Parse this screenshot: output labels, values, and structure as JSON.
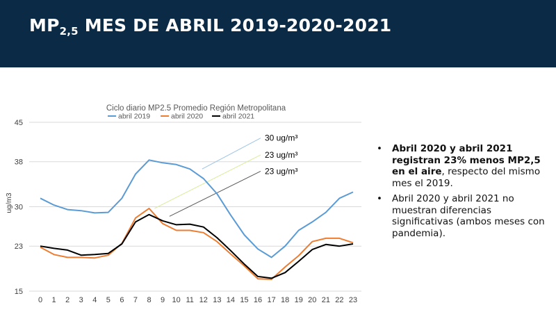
{
  "header": {
    "title_prefix": "MP",
    "title_sub": "2,5",
    "title_rest": " MES DE ABRIL 2019-2020-2021",
    "bg_color": "#0b2a45"
  },
  "chart_data": {
    "type": "line",
    "title": "Ciclo diario MP2.5 Promedio Región Metropolitana",
    "xlabel": "",
    "ylabel": "ug/m3",
    "x": [
      0,
      1,
      2,
      3,
      4,
      5,
      6,
      7,
      8,
      9,
      10,
      11,
      12,
      13,
      14,
      15,
      16,
      17,
      18,
      19,
      20,
      21,
      22,
      23
    ],
    "ylim": [
      15,
      45
    ],
    "yticks": [
      45,
      38,
      30,
      23,
      15
    ],
    "grid": true,
    "legend_position": "top",
    "series": [
      {
        "name": "abril 2019",
        "color": "#5b9bd5",
        "values": [
          31.5,
          30.3,
          29.5,
          29.3,
          28.9,
          29.0,
          31.5,
          35.8,
          38.3,
          37.8,
          37.5,
          36.7,
          35.0,
          32.3,
          28.5,
          25.0,
          22.5,
          21.0,
          23.0,
          25.8,
          27.3,
          29.0,
          31.5,
          32.6
        ]
      },
      {
        "name": "abril 2020",
        "color": "#ed7d31",
        "values": [
          22.8,
          21.5,
          21.0,
          21.0,
          20.9,
          21.4,
          23.5,
          28.0,
          29.7,
          27.0,
          25.8,
          25.8,
          25.4,
          23.8,
          21.6,
          19.5,
          17.2,
          17.1,
          19.3,
          21.3,
          23.8,
          24.4,
          24.4,
          23.6
        ]
      },
      {
        "name": "abril 2021",
        "color": "#000000",
        "values": [
          23.0,
          22.6,
          22.3,
          21.4,
          21.5,
          21.7,
          23.4,
          27.3,
          28.6,
          27.5,
          26.8,
          26.9,
          26.4,
          24.5,
          22.2,
          19.8,
          17.6,
          17.3,
          18.3,
          20.3,
          22.4,
          23.3,
          23.0,
          23.4
        ]
      }
    ],
    "annotations": [
      {
        "label": "30 ug/m³",
        "color": "#9dc3e6",
        "from": [
          11.9,
          36.7
        ],
        "to": [
          16.2,
          42.2
        ]
      },
      {
        "label": "23 ug/m³",
        "color": "#d7ec9b",
        "from": [
          8.4,
          29.7
        ],
        "to": [
          16.2,
          39.2
        ]
      },
      {
        "label": "23 ug/m³",
        "color": "#595959",
        "from": [
          9.5,
          28.3
        ],
        "to": [
          16.2,
          36.3
        ]
      }
    ]
  },
  "bullets": [
    {
      "bold": "Abril 2020 y abril 2021 registran 23% menos MP2,5 en el aire",
      "text": ", respecto del mismo mes el 2019."
    },
    {
      "bold": "",
      "text": "Abril 2020 y abril 2021 no muestran diferencias significativas (ambos meses con pandemia)."
    }
  ]
}
